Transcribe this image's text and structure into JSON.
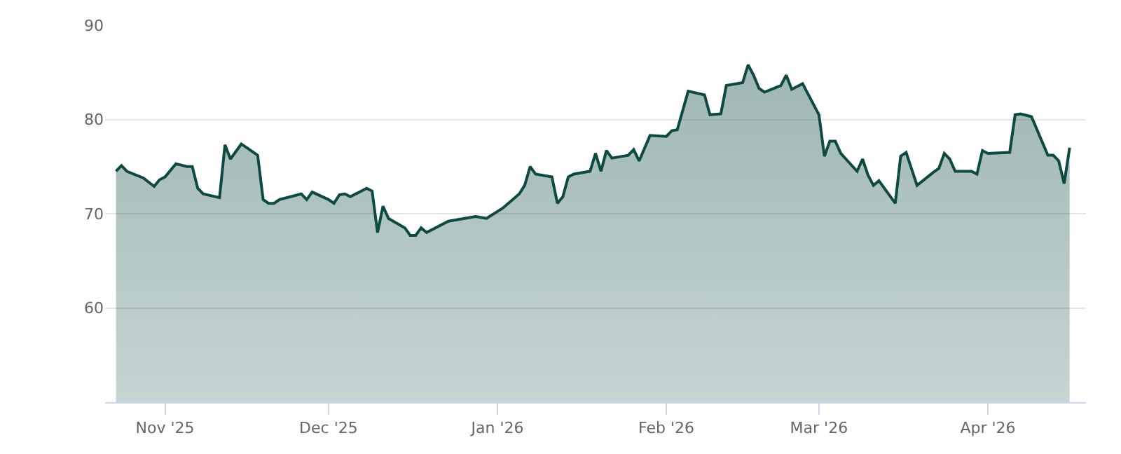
{
  "chart_data": {
    "type": "area",
    "x": [
      "2025-10-23",
      "2025-10-24",
      "2025-10-25",
      "2025-10-28",
      "2025-10-30",
      "2025-10-31",
      "2025-11-01",
      "2025-11-03",
      "2025-11-05",
      "2025-11-06",
      "2025-11-07",
      "2025-11-08",
      "2025-11-11",
      "2025-11-12",
      "2025-11-13",
      "2025-11-15",
      "2025-11-18",
      "2025-11-19",
      "2025-11-20",
      "2025-11-21",
      "2025-11-22",
      "2025-11-26",
      "2025-11-27",
      "2025-11-28",
      "2025-12-01",
      "2025-12-02",
      "2025-12-03",
      "2025-12-04",
      "2025-12-05",
      "2025-12-08",
      "2025-12-09",
      "2025-12-10",
      "2025-12-11",
      "2025-12-12",
      "2025-12-15",
      "2025-12-16",
      "2025-12-17",
      "2025-12-18",
      "2025-12-19",
      "2025-12-23",
      "2025-12-28",
      "2025-12-30",
      "2026-01-02",
      "2026-01-05",
      "2026-01-06",
      "2026-01-07",
      "2026-01-08",
      "2026-01-11",
      "2026-01-12",
      "2026-01-13",
      "2026-01-14",
      "2026-01-15",
      "2026-01-18",
      "2026-01-19",
      "2026-01-20",
      "2026-01-21",
      "2026-01-22",
      "2026-01-25",
      "2026-01-26",
      "2026-01-27",
      "2026-01-29",
      "2026-02-01",
      "2026-02-02",
      "2026-02-03",
      "2026-02-05",
      "2026-02-08",
      "2026-02-09",
      "2026-02-11",
      "2026-02-12",
      "2026-02-15",
      "2026-02-16",
      "2026-02-17",
      "2026-02-18",
      "2026-02-19",
      "2026-02-22",
      "2026-02-23",
      "2026-02-24",
      "2026-02-26",
      "2026-03-01",
      "2026-03-02",
      "2026-03-03",
      "2026-03-04",
      "2026-03-05",
      "2026-03-08",
      "2026-03-09",
      "2026-03-10",
      "2026-03-11",
      "2026-03-12",
      "2026-03-15",
      "2026-03-16",
      "2026-03-17",
      "2026-03-19",
      "2026-03-22",
      "2026-03-23",
      "2026-03-24",
      "2026-03-25",
      "2026-03-26",
      "2026-03-29",
      "2026-03-30",
      "2026-03-31",
      "2026-04-01",
      "2026-04-05",
      "2026-04-06",
      "2026-04-07",
      "2026-04-09",
      "2026-04-12",
      "2026-04-13",
      "2026-04-14",
      "2026-04-15",
      "2026-04-16"
    ],
    "series": [
      {
        "color": "#0d4a42",
        "values": [
          74.5,
          75.1,
          74.5,
          73.8,
          72.9,
          73.6,
          73.9,
          75.3,
          75.0,
          75.0,
          72.7,
          72.1,
          71.7,
          77.3,
          75.8,
          77.4,
          76.2,
          71.5,
          71.1,
          71.1,
          71.5,
          72.1,
          71.5,
          72.3,
          71.5,
          71.1,
          72.0,
          72.1,
          71.8,
          72.7,
          72.4,
          68.0,
          70.8,
          69.5,
          68.5,
          67.7,
          67.7,
          68.5,
          68.0,
          69.2,
          69.7,
          69.5,
          70.6,
          72.1,
          73.0,
          75.0,
          74.2,
          73.9,
          71.1,
          71.8,
          73.9,
          74.2,
          74.5,
          76.4,
          74.5,
          76.7,
          75.9,
          76.2,
          76.8,
          75.6,
          78.3,
          78.2,
          78.8,
          78.9,
          83.0,
          82.6,
          80.5,
          80.6,
          83.6,
          83.9,
          85.8,
          84.7,
          83.3,
          82.9,
          83.6,
          84.7,
          83.2,
          83.8,
          80.5,
          76.1,
          77.7,
          77.7,
          76.4,
          74.5,
          75.8,
          74.1,
          73.0,
          73.5,
          71.1,
          76.1,
          76.5,
          73.0,
          74.4,
          74.8,
          76.4,
          75.8,
          74.5,
          74.5,
          74.2,
          76.7,
          76.4,
          76.5,
          80.5,
          80.6,
          80.3,
          76.2,
          76.2,
          75.6,
          73.2,
          77.0
        ]
      }
    ],
    "xlim": [
      "2025-10-21",
      "2026-04-19"
    ],
    "xticks": [
      {
        "value": "2025-11-01",
        "label": "Nov '25"
      },
      {
        "value": "2025-12-01",
        "label": "Dec '25"
      },
      {
        "value": "2026-01-01",
        "label": "Jan '26"
      },
      {
        "value": "2026-02-01",
        "label": "Feb '26"
      },
      {
        "value": "2026-03-01",
        "label": "Mar '26"
      },
      {
        "value": "2026-04-01",
        "label": "Apr '26"
      }
    ],
    "ylim": [
      50,
      90
    ],
    "yticks": [
      60,
      70,
      80,
      90
    ],
    "grid": "y",
    "marker": "none",
    "line_style": "solid"
  }
}
